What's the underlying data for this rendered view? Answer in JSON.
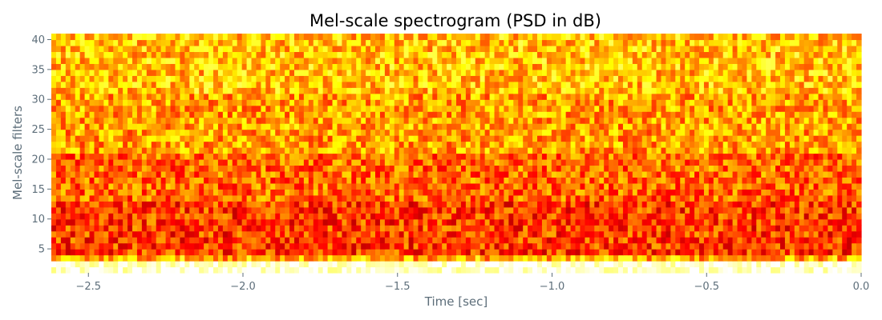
{
  "chart_data": {
    "type": "heatmap",
    "title": "Mel-scale spectrogram (PSD in dB)",
    "xlabel": "Time [sec]",
    "ylabel": "Mel-scale filters",
    "xlim": [
      -2.62,
      0.0
    ],
    "ylim": [
      1,
      41
    ],
    "x_ticks": [
      -2.5,
      -2.0,
      -1.5,
      -1.0,
      -0.5,
      0.0
    ],
    "x_tick_labels": [
      "−2.5",
      "−2.0",
      "−1.5",
      "−1.0",
      "−0.5",
      "0.0"
    ],
    "y_ticks": [
      5,
      10,
      15,
      20,
      25,
      30,
      35,
      40
    ],
    "y_tick_labels": [
      "5",
      "10",
      "15",
      "20",
      "25",
      "30",
      "35",
      "40"
    ],
    "grid": false,
    "colormap": "hot",
    "n_time_frames": 170,
    "n_mel_filters": 40,
    "filter_value_bands": [
      {
        "filters": [
          1,
          2
        ],
        "value": 0.92
      },
      {
        "filters": [
          3,
          3
        ],
        "value": 0.62
      },
      {
        "filters": [
          4,
          12
        ],
        "value": 0.45
      },
      {
        "filters": [
          13,
          20
        ],
        "value": 0.52
      },
      {
        "filters": [
          21,
          30
        ],
        "value": 0.6
      },
      {
        "filters": [
          31,
          40
        ],
        "value": 0.66
      }
    ],
    "value_range": [
      0.28,
      1.0
    ]
  },
  "colors": {
    "text": "#5d6e7a",
    "title": "#000000",
    "background": "#ffffff"
  }
}
